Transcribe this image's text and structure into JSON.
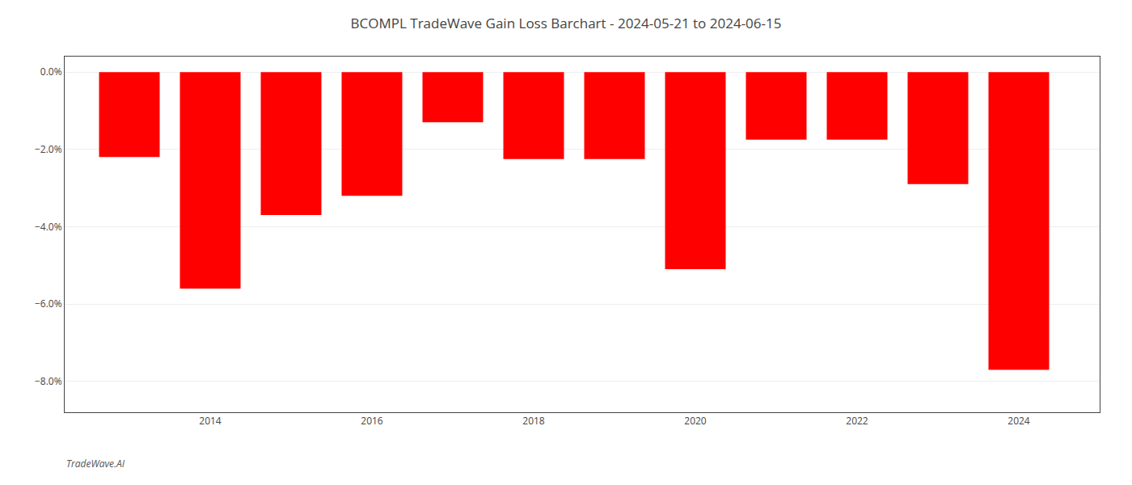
{
  "chart_data": {
    "type": "bar",
    "title": "BCOMPL TradeWave Gain Loss Barchart - 2024-05-21 to 2024-06-15",
    "annotations": [
      "TradeWave.AI"
    ],
    "x": [
      2013,
      2014,
      2015,
      2016,
      2017,
      2018,
      2019,
      2020,
      2021,
      2022,
      2023,
      2024
    ],
    "values": [
      -2.2,
      -5.6,
      -3.7,
      -3.2,
      -1.3,
      -2.25,
      -2.25,
      -5.1,
      -1.75,
      -1.75,
      -2.9,
      -7.7
    ],
    "color": "#ff0000",
    "xlim": [
      2012.2,
      2025.0
    ],
    "xticks": [
      2014,
      2016,
      2018,
      2020,
      2022,
      2024
    ],
    "ylim": [
      -8.8,
      0.4
    ],
    "yticks": [
      {
        "value": 0.0,
        "label": "0.0%"
      },
      {
        "value": -2.0,
        "label": "−2.0%"
      },
      {
        "value": -4.0,
        "label": "−4.0%"
      },
      {
        "value": -6.0,
        "label": "−6.0%"
      },
      {
        "value": -8.0,
        "label": "−8.0%"
      }
    ],
    "grid": "y"
  }
}
